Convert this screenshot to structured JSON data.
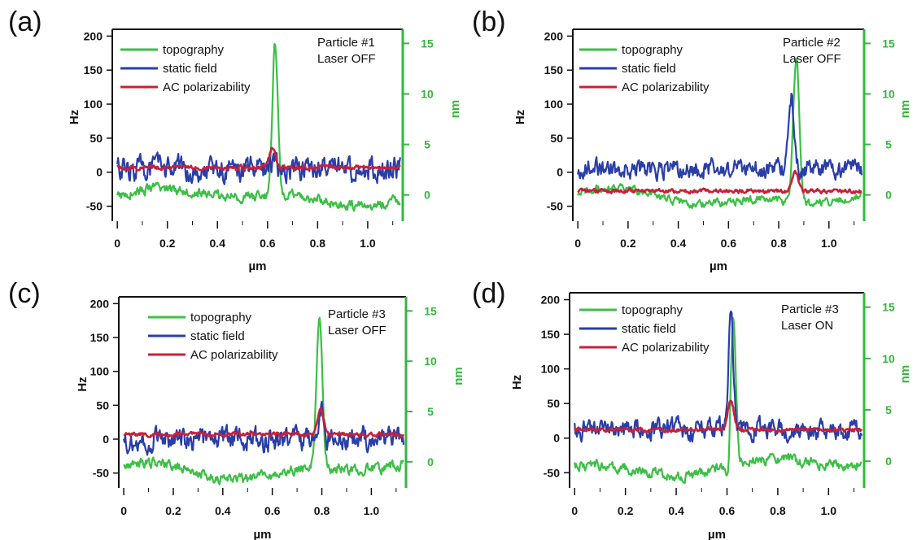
{
  "colors": {
    "topography": "#3cbf46",
    "static_field": "#2a3ea8",
    "ac_polarizability": "#c8203a",
    "right_axis": "#33b83c",
    "left_axis": "#111111"
  },
  "chart_data": [
    {
      "type": "line",
      "panel_label": "(a)",
      "xlabel": "µm",
      "ylabel_left": "Hz",
      "ylabel_right": "nm",
      "xlim": [
        -0.02,
        1.14
      ],
      "ylim_left": [
        -72,
        210
      ],
      "ylim_right": [
        -2.6,
        16.4
      ],
      "x_ticks": [
        0,
        0.2,
        0.4,
        0.6,
        0.8,
        1.0
      ],
      "x_tick_labels": [
        "0",
        "0.2",
        "0.4",
        "0.6",
        "0.8",
        "1.0"
      ],
      "y_left_ticks": [
        -50,
        0,
        50,
        100,
        150,
        200
      ],
      "y_left_tick_labels": [
        "-50",
        "0",
        "50",
        "100",
        "150",
        "200"
      ],
      "y_right_ticks": [
        0,
        5,
        10,
        15
      ],
      "y_right_tick_labels": [
        "0",
        "5",
        "10",
        "15"
      ],
      "legend": [
        "topography",
        "static field",
        "AC polarizability"
      ],
      "annotation": [
        "Particle #1",
        "Laser OFF"
      ],
      "series": [
        {
          "name": "topography",
          "axis": "right",
          "baseline": -0.2,
          "noise": 0.5,
          "peak_x": 0.63,
          "peak_height": 15.0,
          "peak_width": 0.011,
          "peak_shift": 0.0
        },
        {
          "name": "static field",
          "axis": "left",
          "baseline": 5,
          "noise": 18,
          "peak_x": 0.62,
          "peak_height": 10,
          "peak_width": 0.01,
          "peak_shift": 0.0
        },
        {
          "name": "AC polarizability",
          "axis": "left",
          "baseline": 7,
          "noise": 3,
          "peak_x": 0.62,
          "peak_height": 28,
          "peak_width": 0.012,
          "peak_shift": 0.0
        }
      ]
    },
    {
      "type": "line",
      "panel_label": "(b)",
      "xlabel": "µm",
      "ylabel_left": "Hz",
      "ylabel_right": "nm",
      "xlim": [
        -0.02,
        1.14
      ],
      "ylim_left": [
        -72,
        210
      ],
      "ylim_right": [
        -2.6,
        16.4
      ],
      "x_ticks": [
        0,
        0.2,
        0.4,
        0.6,
        0.8,
        1.0
      ],
      "x_tick_labels": [
        "0",
        "0.2",
        "0.4",
        "0.6",
        "0.8",
        "1.0"
      ],
      "y_left_ticks": [
        -50,
        0,
        50,
        100,
        150,
        200
      ],
      "y_left_tick_labels": [
        "-50",
        "0",
        "50",
        "100",
        "150",
        "200"
      ],
      "y_right_ticks": [
        0,
        5,
        10,
        15
      ],
      "y_right_tick_labels": [
        "0",
        "5",
        "10",
        "15"
      ],
      "legend": [
        "topography",
        "static field",
        "AC polarizability"
      ],
      "annotation": [
        "Particle #2",
        "Laser OFF"
      ],
      "series": [
        {
          "name": "topography",
          "axis": "right",
          "baseline": -0.3,
          "noise": 0.4,
          "peak_x": 0.87,
          "peak_height": 14.5,
          "peak_width": 0.012,
          "peak_shift": 0.0
        },
        {
          "name": "static field",
          "axis": "left",
          "baseline": 5,
          "noise": 14,
          "peak_x": 0.85,
          "peak_height": 105,
          "peak_width": 0.01,
          "peak_shift": 0.0
        },
        {
          "name": "AC polarizability",
          "axis": "left",
          "baseline": -28,
          "noise": 3,
          "peak_x": 0.865,
          "peak_height": 28,
          "peak_width": 0.012,
          "peak_shift": 0.0
        }
      ]
    },
    {
      "type": "line",
      "panel_label": "(c)",
      "xlabel": "µm",
      "ylabel_left": "Hz",
      "ylabel_right": "nm",
      "xlim": [
        -0.02,
        1.14
      ],
      "ylim_left": [
        -72,
        210
      ],
      "ylim_right": [
        -2.6,
        16.4
      ],
      "x_ticks": [
        0,
        0.2,
        0.4,
        0.6,
        0.8,
        1.0
      ],
      "x_tick_labels": [
        "0",
        "0.2",
        "0.4",
        "0.6",
        "0.8",
        "1.0"
      ],
      "y_left_ticks": [
        -50,
        0,
        50,
        100,
        150,
        200
      ],
      "y_left_tick_labels": [
        "-50",
        "0",
        "50",
        "100",
        "150",
        "200"
      ],
      "y_right_ticks": [
        0,
        5,
        10,
        15
      ],
      "y_right_tick_labels": [
        "0",
        "5",
        "10",
        "15"
      ],
      "legend": [
        "topography",
        "static field",
        "AC polarizability"
      ],
      "annotation": [
        "Particle #3",
        "Laser OFF"
      ],
      "series": [
        {
          "name": "topography",
          "axis": "right",
          "baseline": -0.8,
          "noise": 0.5,
          "peak_x": 0.79,
          "peak_height": 15.0,
          "peak_width": 0.012,
          "peak_shift": 0.0
        },
        {
          "name": "static field",
          "axis": "left",
          "baseline": 0,
          "noise": 17,
          "peak_x": 0.8,
          "peak_height": 55,
          "peak_width": 0.01,
          "peak_shift": 0.0
        },
        {
          "name": "AC polarizability",
          "axis": "left",
          "baseline": 7,
          "noise": 3,
          "peak_x": 0.795,
          "peak_height": 38,
          "peak_width": 0.012,
          "peak_shift": 0.0
        }
      ]
    },
    {
      "type": "line",
      "panel_label": "(d)",
      "xlabel": "µm",
      "ylabel_left": "Hz",
      "ylabel_right": "nm",
      "xlim": [
        -0.02,
        1.14
      ],
      "ylim_left": [
        -72,
        210
      ],
      "ylim_right": [
        -2.6,
        16.4
      ],
      "x_ticks": [
        0,
        0.2,
        0.4,
        0.6,
        0.8,
        1.0
      ],
      "x_tick_labels": [
        "0",
        "0.2",
        "0.4",
        "0.6",
        "0.8",
        "1.0"
      ],
      "y_left_ticks": [
        -50,
        0,
        50,
        100,
        150,
        200
      ],
      "y_left_tick_labels": [
        "-50",
        "0",
        "50",
        "100",
        "150",
        "200"
      ],
      "y_right_ticks": [
        0,
        5,
        10,
        15
      ],
      "y_right_tick_labels": [
        "0",
        "5",
        "10",
        "15"
      ],
      "legend": [
        "topography",
        "static field",
        "AC polarizability"
      ],
      "annotation": [
        "Particle #3",
        "Laser ON"
      ],
      "series": [
        {
          "name": "topography",
          "axis": "right",
          "baseline": -0.5,
          "noise": 0.5,
          "peak_x": 0.625,
          "peak_height": 14.5,
          "peak_width": 0.01,
          "peak_shift": -2.5
        },
        {
          "name": "static field",
          "axis": "left",
          "baseline": 12,
          "noise": 15,
          "peak_x": 0.615,
          "peak_height": 170,
          "peak_width": 0.009,
          "peak_shift": 0.0
        },
        {
          "name": "AC polarizability",
          "axis": "left",
          "baseline": 12,
          "noise": 3,
          "peak_x": 0.615,
          "peak_height": 42,
          "peak_width": 0.012,
          "peak_shift": 0.0
        }
      ]
    }
  ]
}
